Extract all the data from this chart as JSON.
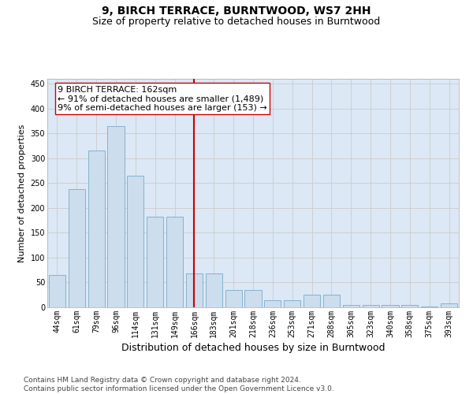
{
  "title": "9, BIRCH TERRACE, BURNTWOOD, WS7 2HH",
  "subtitle": "Size of property relative to detached houses in Burntwood",
  "xlabel": "Distribution of detached houses by size in Burntwood",
  "ylabel": "Number of detached properties",
  "categories": [
    "44sqm",
    "61sqm",
    "79sqm",
    "96sqm",
    "114sqm",
    "131sqm",
    "149sqm",
    "166sqm",
    "183sqm",
    "201sqm",
    "218sqm",
    "236sqm",
    "253sqm",
    "271sqm",
    "288sqm",
    "305sqm",
    "323sqm",
    "340sqm",
    "358sqm",
    "375sqm",
    "393sqm"
  ],
  "values": [
    65,
    238,
    315,
    365,
    265,
    183,
    183,
    68,
    68,
    35,
    35,
    15,
    15,
    25,
    25,
    5,
    5,
    5,
    5,
    2,
    8
  ],
  "bar_color": "#ccdded",
  "bar_edge_color": "#7aaaca",
  "vline_x": 7,
  "vline_color": "#cc0000",
  "annotation_text": "9 BIRCH TERRACE: 162sqm\n← 91% of detached houses are smaller (1,489)\n9% of semi-detached houses are larger (153) →",
  "annotation_box_color": "#ffffff",
  "annotation_box_edge_color": "#cc0000",
  "ylim": [
    0,
    460
  ],
  "yticks": [
    0,
    50,
    100,
    150,
    200,
    250,
    300,
    350,
    400,
    450
  ],
  "grid_color": "#cccccc",
  "bg_color": "#dce8f5",
  "footer_line1": "Contains HM Land Registry data © Crown copyright and database right 2024.",
  "footer_line2": "Contains public sector information licensed under the Open Government Licence v3.0.",
  "title_fontsize": 10,
  "subtitle_fontsize": 9,
  "xlabel_fontsize": 9,
  "ylabel_fontsize": 8,
  "tick_fontsize": 7,
  "annotation_fontsize": 8,
  "footer_fontsize": 6.5
}
